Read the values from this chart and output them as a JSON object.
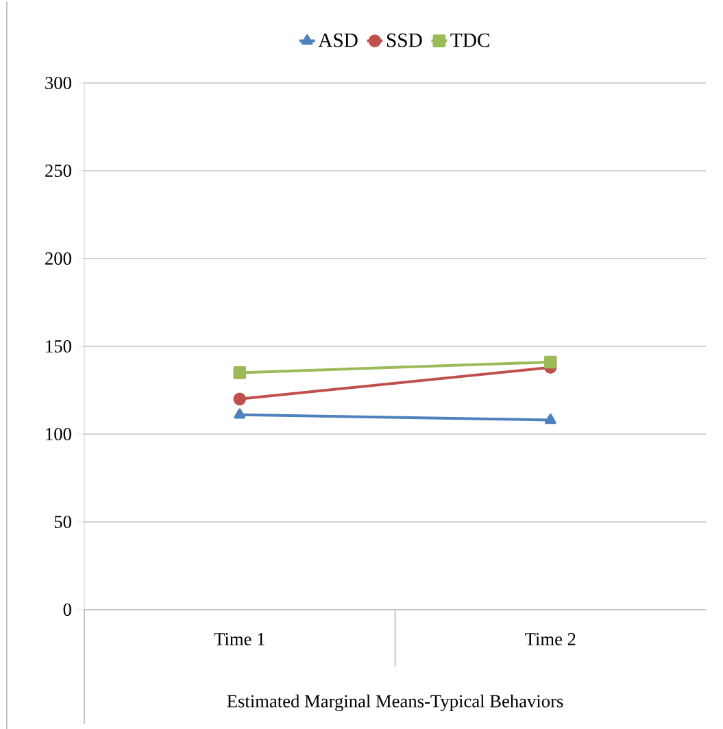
{
  "chart_data": {
    "type": "line",
    "xlabel": "Estimated Marginal Means-Typical Behaviors",
    "categories": [
      "Time 1",
      "Time 2"
    ],
    "series": [
      {
        "name": "ASD",
        "color": "#4f81bd",
        "marker": "triangle",
        "values": [
          111,
          108
        ]
      },
      {
        "name": "SSD",
        "color": "#c0504d",
        "marker": "circle",
        "values": [
          120,
          138
        ]
      },
      {
        "name": "TDC",
        "color": "#9bbb59",
        "marker": "square",
        "values": [
          135,
          141
        ]
      }
    ],
    "ylim": [
      0,
      300
    ],
    "yticks": [
      0,
      50,
      100,
      150,
      200,
      250,
      300
    ],
    "grid": "y",
    "legend": "top"
  }
}
